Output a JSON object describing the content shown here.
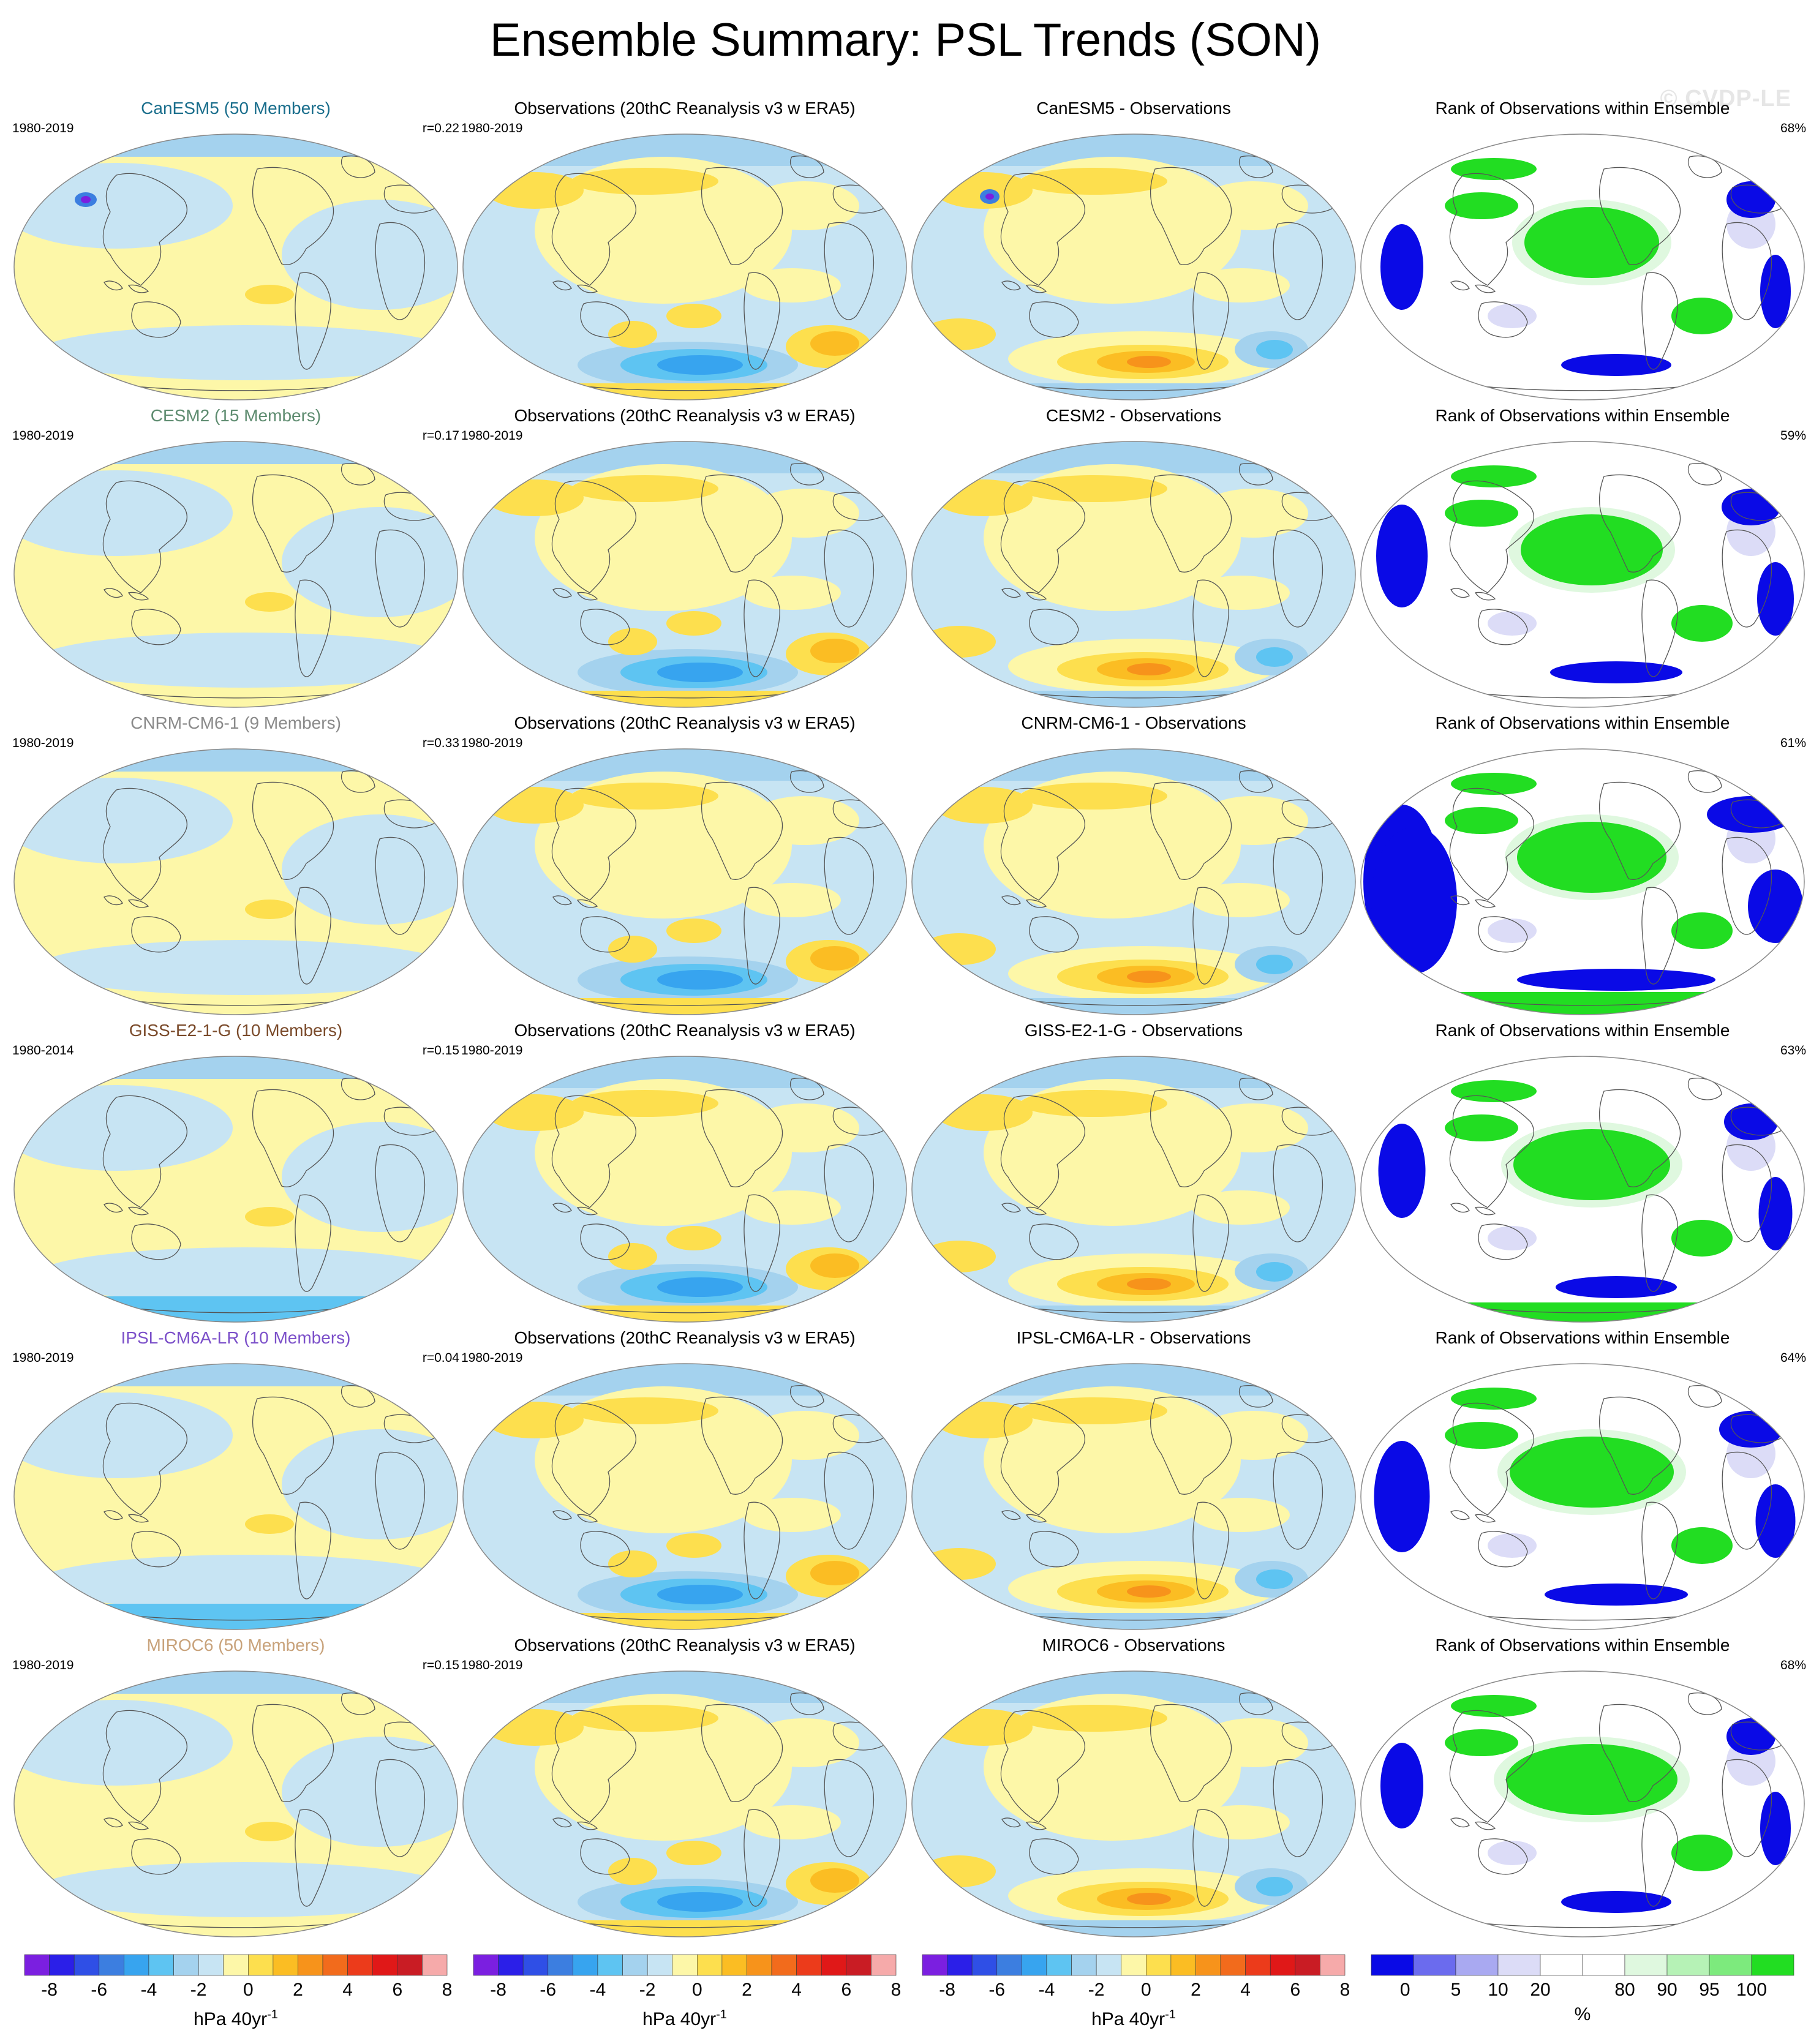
{
  "title": "Ensemble Summary: PSL Trends (SON)",
  "watermark": "© CVDP-LE",
  "rows": [
    {
      "model_title": "CanESM5 (50 Members)",
      "model_color": "#1a6e8c",
      "model_period": "1980-2019",
      "model_r": "r=0.22",
      "obs_title": "Observations (20thC Reanalysis v3 w ERA5)",
      "obs_period": "1980-2019",
      "diff_title": "CanESM5 - Observations",
      "rank_title": "Rank of Observations within Ensemble",
      "rank_pct": "68%"
    },
    {
      "model_title": "CESM2 (15 Members)",
      "model_color": "#5e8c70",
      "model_period": "1980-2019",
      "model_r": "r=0.17",
      "obs_title": "Observations (20thC Reanalysis v3 w ERA5)",
      "obs_period": "1980-2019",
      "diff_title": "CESM2 - Observations",
      "rank_title": "Rank of Observations within Ensemble",
      "rank_pct": "59%"
    },
    {
      "model_title": "CNRM-CM6-1 (9 Members)",
      "model_color": "#8a8a8a",
      "model_period": "1980-2019",
      "model_r": "r=0.33",
      "obs_title": "Observations (20thC Reanalysis v3 w ERA5)",
      "obs_period": "1980-2019",
      "diff_title": "CNRM-CM6-1 - Observations",
      "rank_title": "Rank of Observations within Ensemble",
      "rank_pct": "61%"
    },
    {
      "model_title": "GISS-E2-1-G (10 Members)",
      "model_color": "#7a4a2a",
      "model_period": "1980-2014",
      "model_r": "r=0.15",
      "obs_title": "Observations (20thC Reanalysis v3 w ERA5)",
      "obs_period": "1980-2019",
      "diff_title": "GISS-E2-1-G - Observations",
      "rank_title": "Rank of Observations within Ensemble",
      "rank_pct": "63%"
    },
    {
      "model_title": "IPSL-CM6A-LR (10 Members)",
      "model_color": "#7b4fc9",
      "model_period": "1980-2019",
      "model_r": "r=0.04",
      "obs_title": "Observations (20thC Reanalysis v3 w ERA5)",
      "obs_period": "1980-2019",
      "diff_title": "IPSL-CM6A-LR - Observations",
      "rank_title": "Rank of Observations within Ensemble",
      "rank_pct": "64%"
    },
    {
      "model_title": "MIROC6 (50 Members)",
      "model_color": "#c8a27a",
      "model_period": "1980-2019",
      "model_r": "r=0.15",
      "obs_title": "Observations (20thC Reanalysis v3 w ERA5)",
      "obs_period": "1980-2019",
      "diff_title": "MIROC6 - Observations",
      "rank_title": "Rank of Observations within Ensemble",
      "rank_pct": "68%"
    }
  ],
  "trend_colorbar": {
    "colors": [
      "#7b1fe0",
      "#2b1fe8",
      "#2f4fe6",
      "#3c7ee0",
      "#37a4ef",
      "#5ec4f2",
      "#a4d2ee",
      "#c7e4f3",
      "#fdf7a8",
      "#fddf4e",
      "#fbbd23",
      "#f7931b",
      "#f26b1c",
      "#ec3b1b",
      "#e01818",
      "#c91c24",
      "#f6aaaa"
    ],
    "ticks": [
      "-8",
      "-6",
      "-4",
      "-2",
      "0",
      "2",
      "4",
      "6",
      "8"
    ],
    "unit": "hPa 40yr",
    "unit_sup": "-1"
  },
  "rank_colorbar": {
    "colors": [
      "#0a0ae6",
      "#6b6bee",
      "#a9a9f1",
      "#dcdcf7",
      "#ffffff",
      "#ffffff",
      "#dff8df",
      "#b6f2b6",
      "#7dea7d",
      "#22dd22"
    ],
    "ticks": [
      "0",
      "5",
      "10",
      "20",
      "80",
      "90",
      "95",
      "100"
    ],
    "unit": "%"
  },
  "map_colors": {
    "neutral_neg": "#c7e4f3",
    "neutral_pos": "#fdf7a8",
    "blue_light": "#a4d2ee",
    "blue_mid": "#5ec4f2",
    "blue_dark": "#37a4ef",
    "blue_deep": "#3c7ee0",
    "orange_light": "#fddf4e",
    "orange_mid": "#fbbd23",
    "orange_dark": "#f7931b",
    "red": "#ec3b1b",
    "rank_blue": "#0a0ae6",
    "rank_lightblue": "#dcdcf7",
    "rank_green": "#22dd22",
    "rank_lightgreen": "#dff8df",
    "coast": "#555555"
  }
}
